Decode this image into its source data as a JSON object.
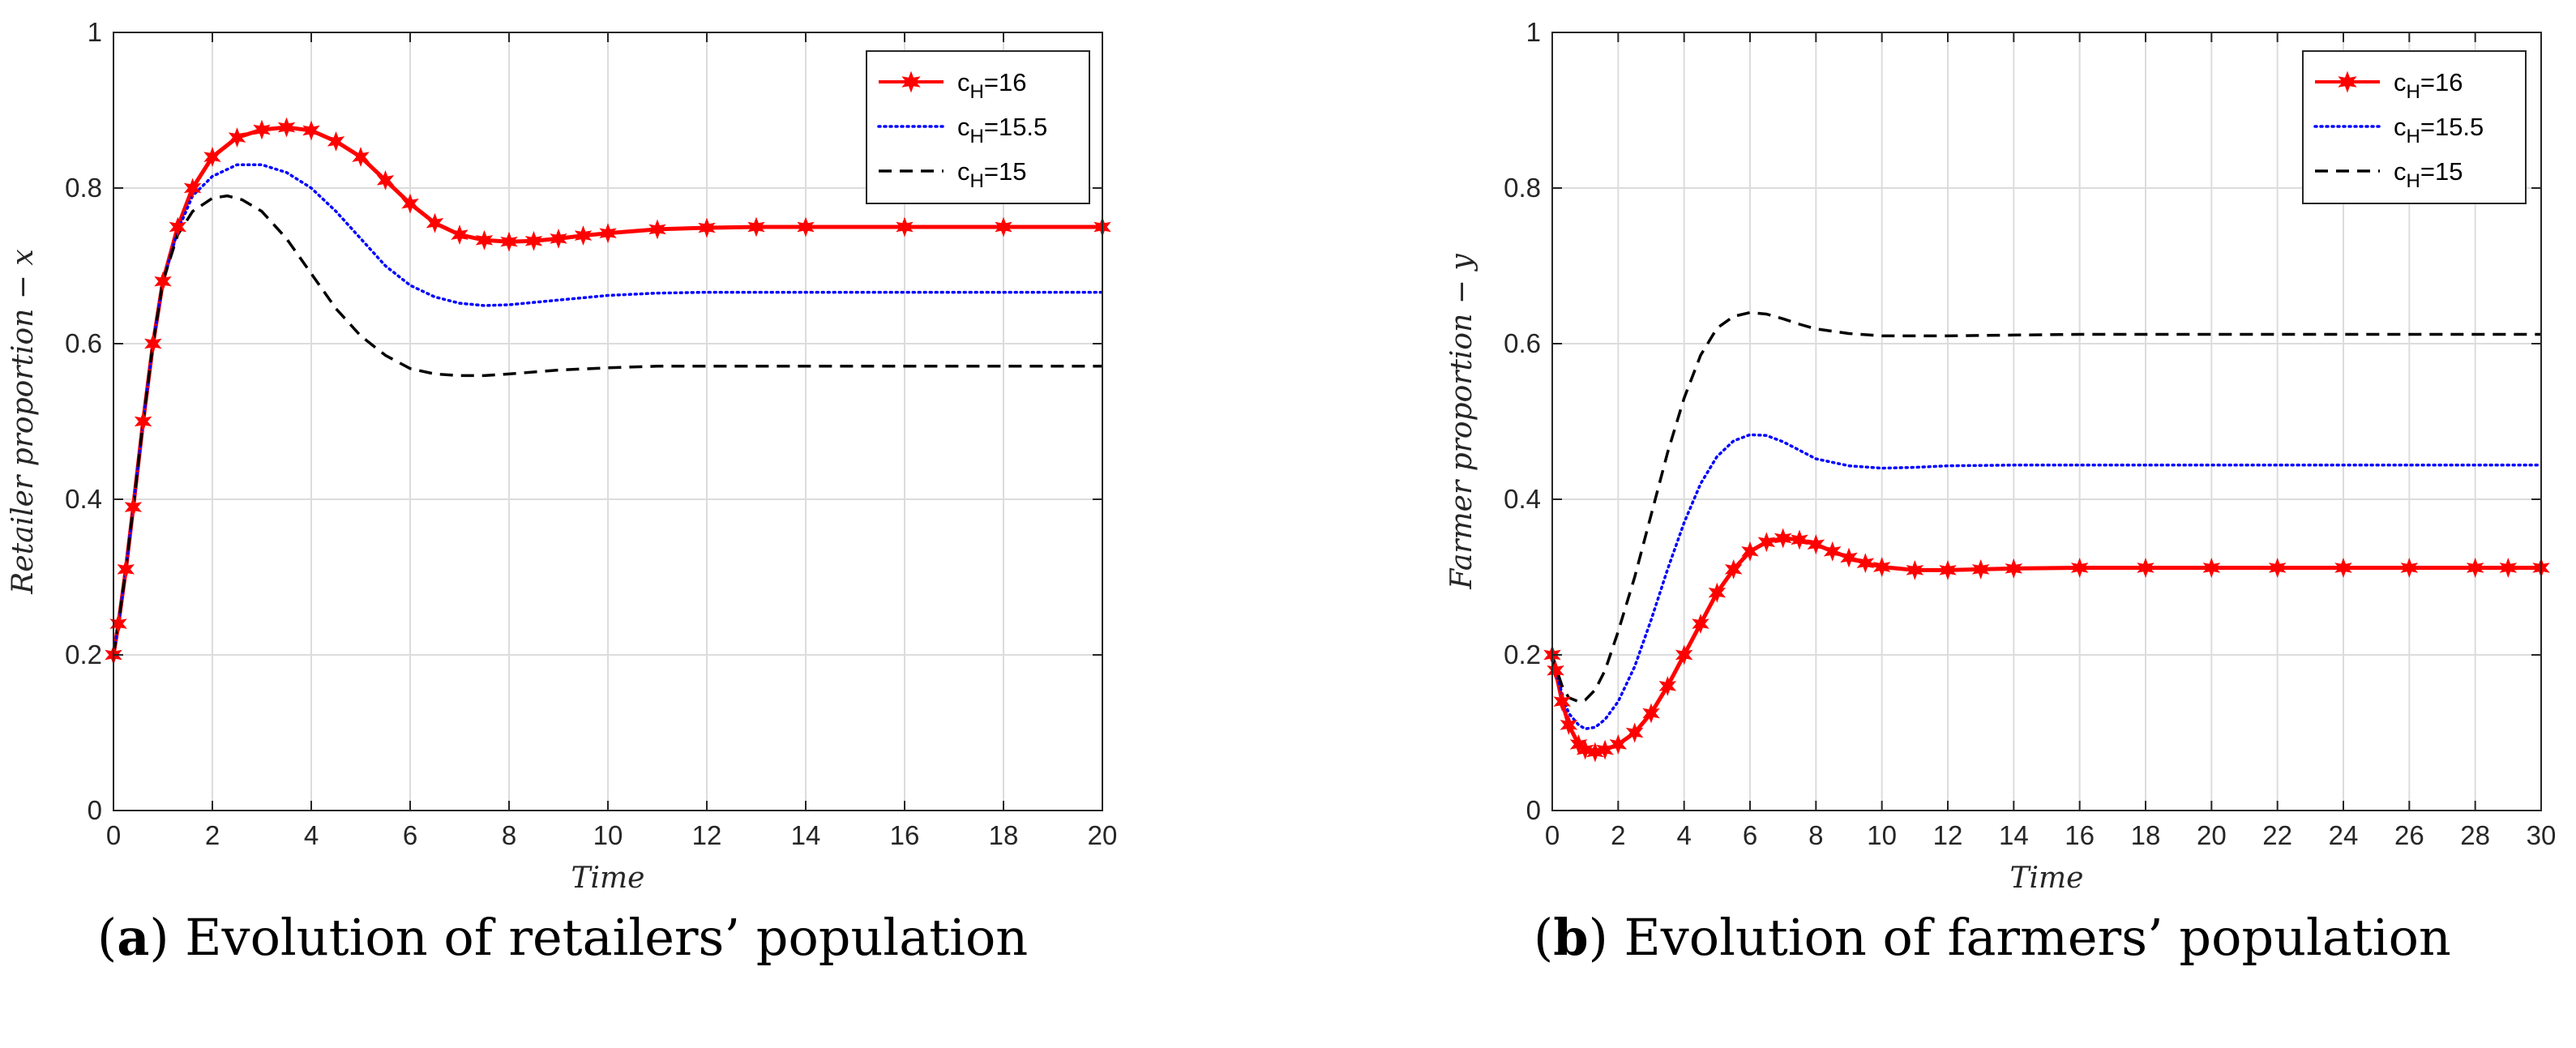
{
  "colors": {
    "c16": "#ff0000",
    "c155": "#0000ff",
    "c15": "#000000",
    "grid": "#dcdcdc",
    "axis": "#262626"
  },
  "chart_data": [
    {
      "type": "line",
      "xlabel": "Time",
      "ylabel": "Retailer proportion − x",
      "xlim": [
        0,
        20
      ],
      "ylim": [
        0,
        1
      ],
      "xticks": [
        0,
        2,
        4,
        6,
        8,
        10,
        12,
        14,
        16,
        18,
        20
      ],
      "yticks": [
        0,
        0.2,
        0.4,
        0.6,
        0.8,
        1
      ],
      "ytick_labels": [
        "0",
        "0.2",
        "0.4",
        "0.6",
        "0.8",
        "1"
      ],
      "grid": true,
      "legend_position": "top-right",
      "caption_label": "a",
      "caption_text": ") Evolution of retailers’ population",
      "series": [
        {
          "name": "cH=16",
          "legend_main": "c",
          "legend_sub": "H",
          "legend_rest": "=16",
          "color": "#ff0000",
          "style": "solid",
          "marker": "star",
          "x": [
            0,
            0.1,
            0.25,
            0.4,
            0.6,
            0.8,
            1.0,
            1.3,
            1.6,
            2.0,
            2.5,
            3.0,
            3.5,
            4.0,
            4.5,
            5.0,
            5.5,
            6.0,
            6.5,
            7.0,
            7.5,
            8.0,
            8.5,
            9.0,
            9.5,
            10.0,
            11.0,
            12.0,
            13.0,
            14.0,
            16.0,
            18.0,
            20.0
          ],
          "y": [
            0.2,
            0.24,
            0.31,
            0.39,
            0.5,
            0.6,
            0.68,
            0.75,
            0.8,
            0.84,
            0.865,
            0.875,
            0.878,
            0.874,
            0.86,
            0.84,
            0.81,
            0.78,
            0.755,
            0.74,
            0.733,
            0.731,
            0.732,
            0.735,
            0.739,
            0.742,
            0.747,
            0.749,
            0.75,
            0.75,
            0.75,
            0.75,
            0.75
          ]
        },
        {
          "name": "cH=15.5",
          "legend_main": "c",
          "legend_sub": "H",
          "legend_rest": "=15.5",
          "color": "#0000ff",
          "style": "dotted",
          "marker": "none",
          "x": [
            0,
            0.1,
            0.25,
            0.4,
            0.6,
            0.8,
            1.0,
            1.3,
            1.6,
            2.0,
            2.5,
            3.0,
            3.5,
            4.0,
            4.5,
            5.0,
            5.5,
            6.0,
            6.5,
            7.0,
            7.5,
            8.0,
            9.0,
            10.0,
            11.0,
            12.0,
            14.0,
            16.0,
            18.0,
            20.0
          ],
          "y": [
            0.2,
            0.24,
            0.31,
            0.39,
            0.5,
            0.6,
            0.68,
            0.745,
            0.79,
            0.815,
            0.83,
            0.83,
            0.82,
            0.8,
            0.77,
            0.735,
            0.7,
            0.675,
            0.66,
            0.652,
            0.649,
            0.65,
            0.656,
            0.662,
            0.665,
            0.666,
            0.666,
            0.666,
            0.666,
            0.666
          ]
        },
        {
          "name": "cH=15",
          "legend_main": "c",
          "legend_sub": "H",
          "legend_rest": "=15",
          "color": "#000000",
          "style": "dashed",
          "marker": "none",
          "x": [
            0,
            0.1,
            0.25,
            0.4,
            0.6,
            0.8,
            1.0,
            1.3,
            1.6,
            2.0,
            2.3,
            2.6,
            3.0,
            3.5,
            4.0,
            4.5,
            5.0,
            5.5,
            6.0,
            6.5,
            7.0,
            7.5,
            8.0,
            9.0,
            10.0,
            11.0,
            12.0,
            14.0,
            16.0,
            18.0,
            20.0
          ],
          "y": [
            0.2,
            0.24,
            0.31,
            0.39,
            0.5,
            0.6,
            0.68,
            0.74,
            0.77,
            0.787,
            0.79,
            0.785,
            0.77,
            0.735,
            0.69,
            0.645,
            0.61,
            0.585,
            0.568,
            0.561,
            0.559,
            0.559,
            0.561,
            0.566,
            0.569,
            0.571,
            0.571,
            0.571,
            0.571,
            0.571,
            0.571
          ]
        }
      ]
    },
    {
      "type": "line",
      "xlabel": "Time",
      "ylabel": "Farmer proportion − y",
      "xlim": [
        0,
        30
      ],
      "ylim": [
        0,
        1
      ],
      "xticks": [
        0,
        2,
        4,
        6,
        8,
        10,
        12,
        14,
        16,
        18,
        20,
        22,
        24,
        26,
        28,
        30
      ],
      "yticks": [
        0,
        0.2,
        0.4,
        0.6,
        0.8,
        1
      ],
      "ytick_labels": [
        "0",
        "0.2",
        "0.4",
        "0.6",
        "0.8",
        "1"
      ],
      "grid": true,
      "legend_position": "top-right",
      "caption_label": "b",
      "caption_text": ") Evolution of farmers’ population",
      "series": [
        {
          "name": "cH=16",
          "legend_main": "c",
          "legend_sub": "H",
          "legend_rest": "=16",
          "color": "#ff0000",
          "style": "solid",
          "marker": "star",
          "x": [
            0,
            0.1,
            0.3,
            0.5,
            0.8,
            1.0,
            1.3,
            1.6,
            2.0,
            2.5,
            3.0,
            3.5,
            4.0,
            4.5,
            5.0,
            5.5,
            6.0,
            6.5,
            7.0,
            7.5,
            8.0,
            8.5,
            9.0,
            9.5,
            10.0,
            11.0,
            12.0,
            13.0,
            14.0,
            16.0,
            18.0,
            20.0,
            22.0,
            24.0,
            26.0,
            28.0,
            29.0,
            30.0
          ],
          "y": [
            0.2,
            0.18,
            0.14,
            0.11,
            0.085,
            0.078,
            0.075,
            0.078,
            0.085,
            0.1,
            0.125,
            0.16,
            0.2,
            0.24,
            0.28,
            0.31,
            0.333,
            0.345,
            0.35,
            0.348,
            0.342,
            0.333,
            0.325,
            0.318,
            0.313,
            0.309,
            0.309,
            0.31,
            0.311,
            0.312,
            0.312,
            0.312,
            0.312,
            0.312,
            0.312,
            0.312,
            0.312,
            0.312
          ]
        },
        {
          "name": "cH=15.5",
          "legend_main": "c",
          "legend_sub": "H",
          "legend_rest": "=15.5",
          "color": "#0000ff",
          "style": "dotted",
          "marker": "none",
          "x": [
            0,
            0.1,
            0.3,
            0.5,
            0.8,
            1.0,
            1.3,
            1.6,
            2.0,
            2.5,
            3.0,
            3.5,
            4.0,
            4.5,
            5.0,
            5.5,
            6.0,
            6.5,
            7.0,
            7.5,
            8.0,
            9.0,
            10.0,
            11.0,
            12.0,
            14.0,
            16.0,
            20.0,
            24.0,
            28.0,
            30.0
          ],
          "y": [
            0.2,
            0.18,
            0.15,
            0.125,
            0.11,
            0.105,
            0.107,
            0.117,
            0.14,
            0.185,
            0.245,
            0.31,
            0.37,
            0.42,
            0.455,
            0.475,
            0.483,
            0.482,
            0.474,
            0.463,
            0.452,
            0.443,
            0.44,
            0.441,
            0.443,
            0.444,
            0.444,
            0.444,
            0.444,
            0.444,
            0.444
          ]
        },
        {
          "name": "cH=15",
          "legend_main": "c",
          "legend_sub": "H",
          "legend_rest": "=15",
          "color": "#000000",
          "style": "dashed",
          "marker": "none",
          "x": [
            0,
            0.1,
            0.3,
            0.5,
            0.8,
            1.0,
            1.3,
            1.6,
            2.0,
            2.5,
            3.0,
            3.5,
            4.0,
            4.5,
            5.0,
            5.5,
            6.0,
            6.5,
            7.0,
            7.5,
            8.0,
            9.0,
            10.0,
            11.0,
            12.0,
            14.0,
            16.0,
            20.0,
            24.0,
            28.0,
            30.0
          ],
          "y": [
            0.2,
            0.185,
            0.16,
            0.145,
            0.14,
            0.142,
            0.155,
            0.18,
            0.23,
            0.3,
            0.38,
            0.46,
            0.53,
            0.585,
            0.62,
            0.635,
            0.64,
            0.638,
            0.632,
            0.625,
            0.619,
            0.613,
            0.61,
            0.61,
            0.61,
            0.611,
            0.612,
            0.612,
            0.612,
            0.612,
            0.612
          ]
        }
      ]
    }
  ]
}
